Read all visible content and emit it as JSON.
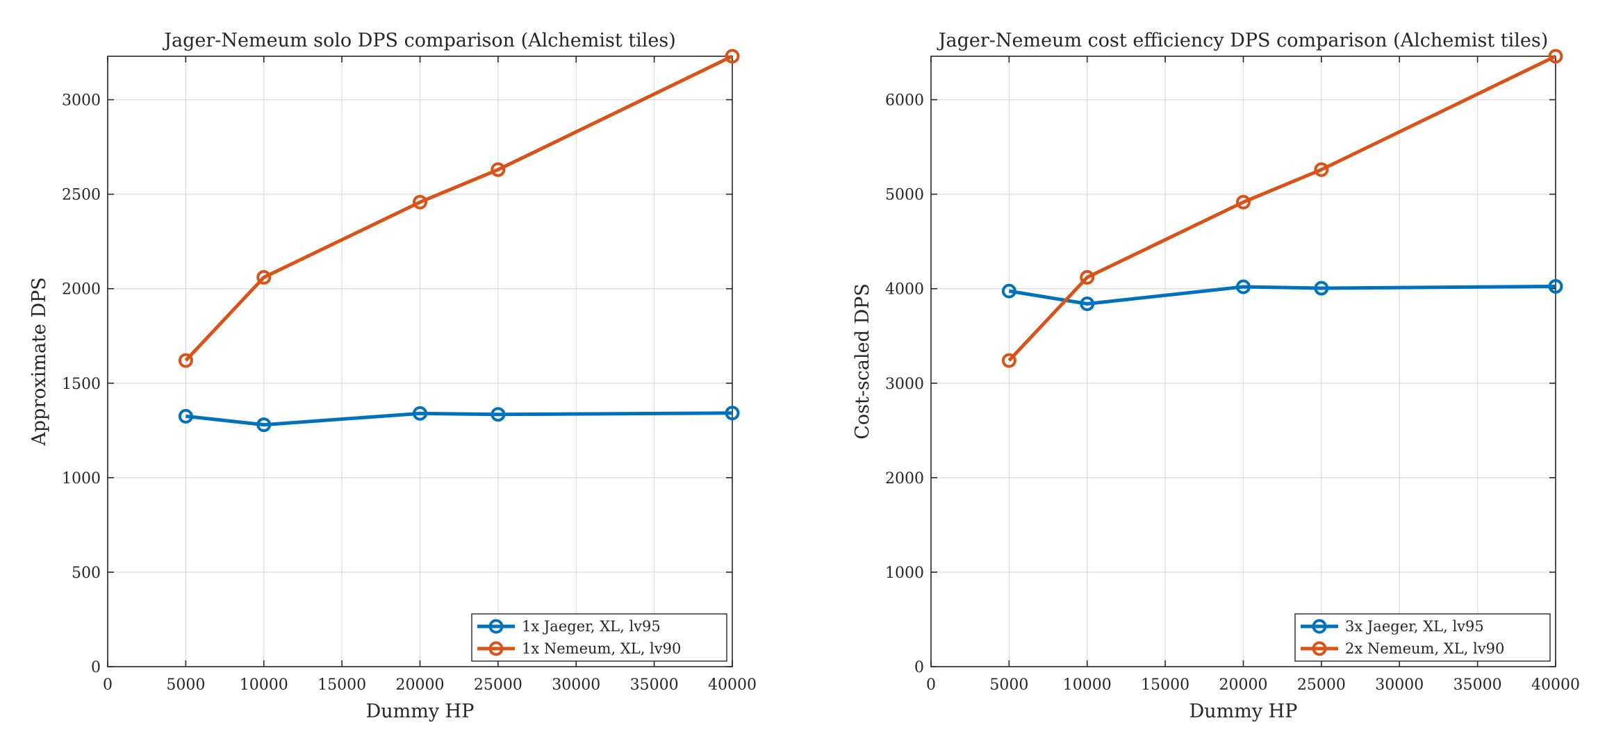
{
  "chart_data": [
    {
      "type": "line",
      "title": "Jager-Nemeum solo DPS comparison (Alchemist tiles)",
      "xlabel": "Dummy HP",
      "ylabel": "Approximate DPS",
      "xlim": [
        0,
        40000
      ],
      "ylim": [
        0,
        3230
      ],
      "xticks": [
        0,
        5000,
        10000,
        15000,
        20000,
        25000,
        30000,
        35000,
        40000
      ],
      "yticks": [
        0,
        500,
        1000,
        1500,
        2000,
        2500,
        3000
      ],
      "grid": true,
      "legend_position": "bottom-right",
      "x": [
        5000,
        10000,
        20000,
        25000,
        40000
      ],
      "series": [
        {
          "name": "1x Jaeger, XL, lv95",
          "color": "#0072BD",
          "values": [
            1325,
            1280,
            1340,
            1335,
            1342
          ]
        },
        {
          "name": "1x Nemeum, XL, lv90",
          "color": "#D95319",
          "values": [
            1620,
            2060,
            2458,
            2630,
            3230
          ]
        }
      ]
    },
    {
      "type": "line",
      "title": "Jager-Nemeum cost efficiency DPS comparison (Alchemist tiles)",
      "xlabel": "Dummy HP",
      "ylabel": "Cost-scaled DPS",
      "xlim": [
        0,
        40000
      ],
      "ylim": [
        0,
        6460
      ],
      "xticks": [
        0,
        5000,
        10000,
        15000,
        20000,
        25000,
        30000,
        35000,
        40000
      ],
      "yticks": [
        0,
        1000,
        2000,
        3000,
        4000,
        5000,
        6000
      ],
      "grid": true,
      "legend_position": "bottom-right",
      "x": [
        5000,
        10000,
        20000,
        25000,
        40000
      ],
      "series": [
        {
          "name": "3x Jaeger, XL, lv95",
          "color": "#0072BD",
          "values": [
            3975,
            3840,
            4020,
            4005,
            4025
          ]
        },
        {
          "name": "2x Nemeum, XL, lv90",
          "color": "#D95319",
          "values": [
            3240,
            4120,
            4916,
            5260,
            6460
          ]
        }
      ]
    }
  ]
}
